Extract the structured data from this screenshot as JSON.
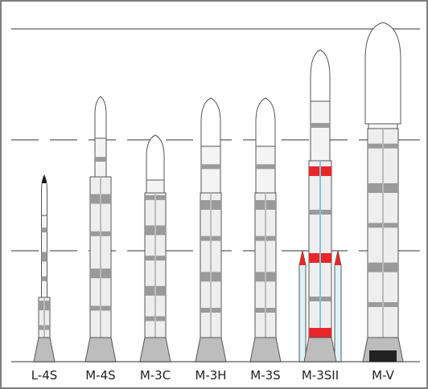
{
  "rockets": [
    "L-4S",
    "M-4S",
    "M-3C",
    "M-3H",
    "M-3S",
    "M-3SII",
    "M-V"
  ]
}
